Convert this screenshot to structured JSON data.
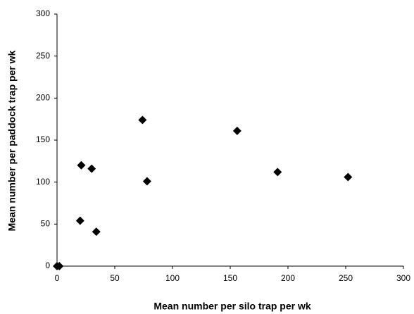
{
  "chart_data": {
    "type": "scatter",
    "x_label": "Mean number per silo trap per wk",
    "y_label": "Mean number per paddock trap per wk",
    "x": [
      0,
      2,
      20,
      21,
      30,
      34,
      74,
      78,
      156,
      191,
      252
    ],
    "values": [
      0,
      0,
      54,
      120,
      116,
      41,
      174,
      101,
      161,
      112,
      106
    ],
    "color": "#000000",
    "xlim": [
      0,
      300
    ],
    "xticks": [
      0,
      50,
      100,
      150,
      200,
      250,
      300
    ],
    "ylim": [
      0,
      300
    ],
    "yticks": [
      0,
      50,
      100,
      150,
      200,
      250,
      300
    ]
  }
}
